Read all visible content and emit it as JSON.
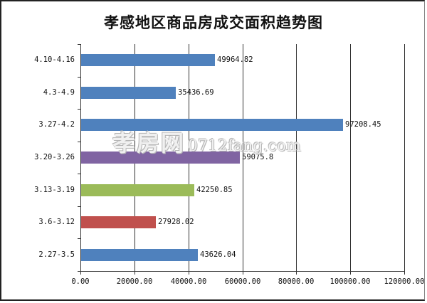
{
  "chart_data": {
    "type": "bar",
    "orientation": "horizontal",
    "title": "孝感地区商品房成交面积趋势图",
    "xlabel": "",
    "ylabel": "",
    "categories": [
      "4.10-4.16",
      "4.3-4.9",
      "3.27-4.2",
      "3.20-3.26",
      "3.13-3.19",
      "3.6-3.12",
      "2.27-3.5"
    ],
    "values": [
      49964.82,
      35436.69,
      97208.45,
      59075.8,
      42250.85,
      27928.02,
      43626.04
    ],
    "value_labels": [
      "49964.82",
      "35436.69",
      "97208.45",
      "59075.8",
      "42250.85",
      "27928.02",
      "43626.04"
    ],
    "bar_colors": [
      "#4f81bd",
      "#4f81bd",
      "#4f81bd",
      "#8064a2",
      "#9bbb59",
      "#c0504d",
      "#4f81bd"
    ],
    "xlim": [
      0,
      120000
    ],
    "xticks": [
      0,
      20000,
      40000,
      60000,
      80000,
      100000,
      120000
    ],
    "xtick_labels": [
      "0.00",
      "20000.00",
      "40000.00",
      "60000.00",
      "80000.00",
      "100000.00",
      "120000.00"
    ],
    "grid": "vertical",
    "legend": "none"
  },
  "watermark": {
    "cn": "孝房网",
    "en": "0712fang.com"
  }
}
